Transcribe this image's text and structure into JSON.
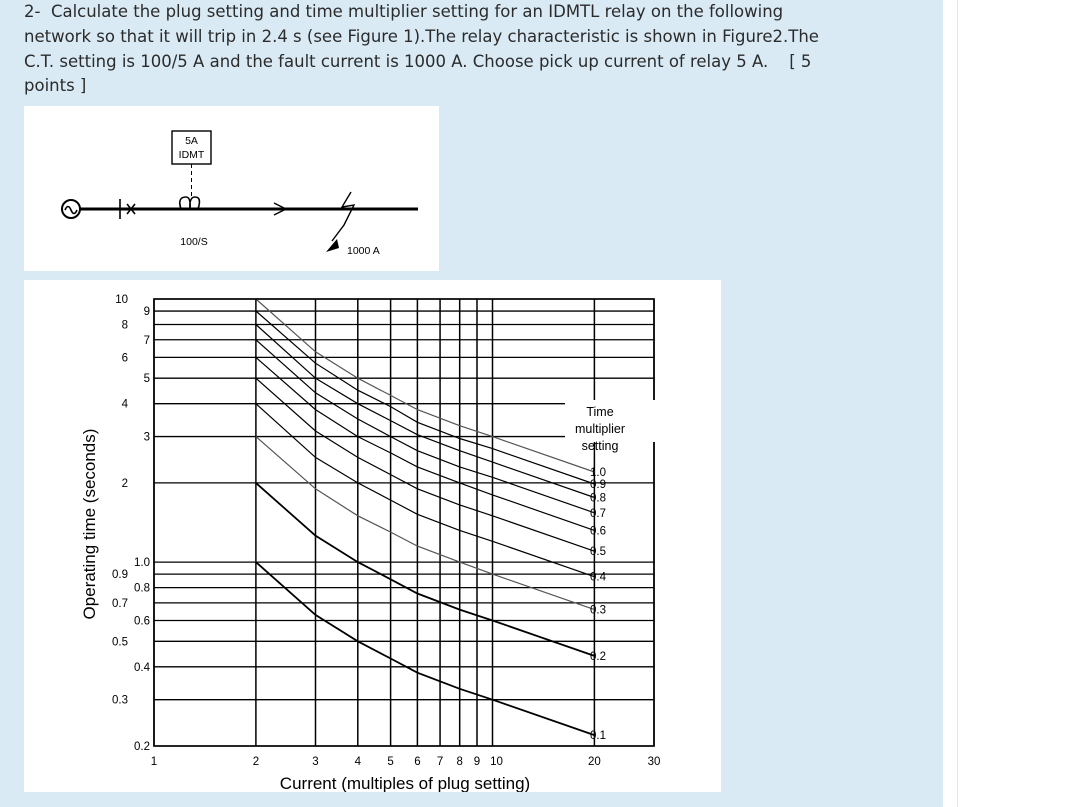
{
  "question": {
    "line1": "2-  Calculate the plug setting and time multiplier setting for an IDMTL relay on the following",
    "line2": "network so that it will trip in 2.4 s (see Figure 1).The relay characteristic is shown in Figure2.The",
    "line3": "C.T. setting is 100/5 A and the fault current is 1000 A. Choose pick up current of relay 5 A.    [ 5",
    "line4": "points ]"
  },
  "figure1": {
    "relay_label_line1": "5A",
    "relay_label_line2": "IDMT",
    "ct_label": "100/S",
    "fault_label": "1000 A"
  },
  "colors": {
    "panel_bg": "#d9eaf5",
    "text": "#2b2b2b",
    "figure_ink": "#000000",
    "curve_gray": "#555555"
  },
  "chart_data": {
    "type": "line",
    "title": "",
    "xlabel": "Current (multiples of plug setting)",
    "ylabel": "Operating time (seconds)",
    "x_scale": "log",
    "y_scale": "log",
    "xlim": [
      1,
      30
    ],
    "ylim": [
      0.2,
      10
    ],
    "grid": true,
    "x_tick_labels": [
      "1",
      "2",
      "3",
      "4",
      "5",
      "6",
      "7",
      "8",
      "9",
      "10",
      "20",
      "30"
    ],
    "y_tick_labels_outer": [
      "10",
      "8",
      "6",
      "4",
      "2",
      "0.9",
      "0.7",
      "0.5",
      "0.3"
    ],
    "y_tick_labels_inner": [
      "9",
      "7",
      "5",
      "3",
      "1.0",
      "0.8",
      "0.6",
      "0.4",
      "0.2"
    ],
    "legend_title": "Time multiplier setting",
    "legend_placement": "right",
    "series": [
      {
        "name": "1.0",
        "x": [
          2,
          3,
          4,
          5,
          6,
          8,
          10,
          20
        ],
        "y": [
          10,
          6.3,
          5.0,
          4.3,
          3.8,
          3.3,
          3.0,
          2.2
        ]
      },
      {
        "name": "0.9",
        "x": [
          2,
          3,
          4,
          5,
          6,
          8,
          10,
          20
        ],
        "y": [
          9,
          5.7,
          4.5,
          3.9,
          3.4,
          2.95,
          2.7,
          1.98
        ]
      },
      {
        "name": "0.8",
        "x": [
          2,
          3,
          4,
          5,
          6,
          8,
          10,
          20
        ],
        "y": [
          8,
          5.0,
          4.0,
          3.45,
          3.05,
          2.65,
          2.4,
          1.76
        ]
      },
      {
        "name": "0.7",
        "x": [
          2,
          3,
          4,
          5,
          6,
          8,
          10,
          20
        ],
        "y": [
          7,
          4.4,
          3.5,
          3.0,
          2.65,
          2.3,
          2.1,
          1.54
        ]
      },
      {
        "name": "0.6",
        "x": [
          2,
          3,
          4,
          5,
          6,
          8,
          10,
          20
        ],
        "y": [
          6,
          3.8,
          3.0,
          2.6,
          2.3,
          2.0,
          1.8,
          1.32
        ]
      },
      {
        "name": "0.5",
        "x": [
          2,
          3,
          4,
          5,
          6,
          8,
          10,
          20
        ],
        "y": [
          5,
          3.15,
          2.5,
          2.15,
          1.9,
          1.65,
          1.5,
          1.1
        ]
      },
      {
        "name": "0.4",
        "x": [
          2,
          3,
          4,
          5,
          6,
          8,
          10,
          20
        ],
        "y": [
          4,
          2.5,
          2.0,
          1.72,
          1.52,
          1.32,
          1.2,
          0.88
        ]
      },
      {
        "name": "0.3",
        "x": [
          2,
          3,
          4,
          5,
          6,
          8,
          10,
          20
        ],
        "y": [
          3,
          1.9,
          1.5,
          1.3,
          1.15,
          1.0,
          0.9,
          0.66
        ]
      },
      {
        "name": "0.2",
        "x": [
          2,
          3,
          4,
          5,
          6,
          8,
          10,
          20
        ],
        "y": [
          2,
          1.26,
          1.0,
          0.86,
          0.76,
          0.66,
          0.6,
          0.44
        ]
      },
      {
        "name": "0.1",
        "x": [
          2,
          3,
          4,
          5,
          6,
          8,
          10,
          20
        ],
        "y": [
          1,
          0.63,
          0.5,
          0.43,
          0.38,
          0.33,
          0.3,
          0.22
        ]
      }
    ]
  }
}
